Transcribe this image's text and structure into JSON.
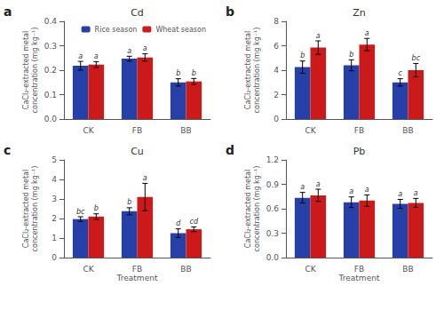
{
  "chart_data": [
    {
      "type": "bar",
      "panel_label": "a",
      "title": "Cd",
      "ylabel": "CaCl₂-extracted metal\nconcentration (mg kg⁻¹)",
      "categories": [
        "CK",
        "FB",
        "BB"
      ],
      "series": [
        {
          "name": "Rice season",
          "color": "#2640a8",
          "values": [
            0.218,
            0.247,
            0.15
          ],
          "errors": [
            0.018,
            0.01,
            0.015
          ],
          "letters": [
            "a",
            "a",
            "b"
          ]
        },
        {
          "name": "Wheat season",
          "color": "#cc1a1a",
          "values": [
            0.223,
            0.252,
            0.154
          ],
          "errors": [
            0.012,
            0.015,
            0.012
          ],
          "letters": [
            "a",
            "a",
            "b"
          ]
        }
      ],
      "ylim": [
        0.0,
        0.4
      ],
      "yticks": [
        {
          "value": 0.0,
          "label": "0.0"
        },
        0.1,
        0.2,
        0.3,
        0.4
      ],
      "grid": false,
      "legend": "upper right"
    },
    {
      "type": "bar",
      "panel_label": "b",
      "title": "Zn",
      "ylabel": "CaCl₂-extracted metal\nconcentration (mg kg⁻¹)",
      "categories": [
        "CK",
        "FB",
        "BB"
      ],
      "series": [
        {
          "name": "Rice season",
          "color": "#2640a8",
          "values": [
            4.25,
            4.4,
            3.0
          ],
          "errors": [
            0.5,
            0.45,
            0.3
          ],
          "letters": [
            "b",
            "b",
            "c"
          ]
        },
        {
          "name": "Wheat season",
          "color": "#cc1a1a",
          "values": [
            5.85,
            6.1,
            4.0
          ],
          "errors": [
            0.55,
            0.5,
            0.55
          ],
          "letters": [
            "a",
            "a",
            "bc"
          ]
        }
      ],
      "ylim": [
        0,
        8
      ],
      "yticks": [
        0,
        2,
        4,
        6,
        8
      ],
      "grid": false
    },
    {
      "type": "bar",
      "panel_label": "c",
      "title": "Cu",
      "ylabel": "CaCl₂-extracted metal\nconcentration (mg kg⁻¹)",
      "xlabel": "Treatment",
      "categories": [
        "CK",
        "FB",
        "BB"
      ],
      "series": [
        {
          "name": "Rice season",
          "color": "#2640a8",
          "values": [
            1.97,
            2.37,
            1.25
          ],
          "errors": [
            0.12,
            0.18,
            0.22
          ],
          "letters": [
            "bc",
            "b",
            "d"
          ]
        },
        {
          "name": "Wheat season",
          "color": "#cc1a1a",
          "values": [
            2.1,
            3.1,
            1.45
          ],
          "errors": [
            0.14,
            0.7,
            0.12
          ],
          "letters": [
            "b",
            "a",
            "cd"
          ]
        }
      ],
      "ylim": [
        0,
        5
      ],
      "yticks": [
        0,
        1,
        2,
        3,
        4,
        5
      ],
      "grid": false
    },
    {
      "type": "bar",
      "panel_label": "d",
      "title": "Pb",
      "ylabel": "CaCl₂-extracted metal\nconcentration (mg kg⁻¹)",
      "xlabel": "Treatment",
      "categories": [
        "CK",
        "FB",
        "BB"
      ],
      "series": [
        {
          "name": "Rice season",
          "color": "#2640a8",
          "values": [
            0.735,
            0.68,
            0.66
          ],
          "errors": [
            0.065,
            0.065,
            0.055
          ],
          "letters": [
            "a",
            "a",
            "a"
          ]
        },
        {
          "name": "Wheat season",
          "color": "#cc1a1a",
          "values": [
            0.765,
            0.7,
            0.672
          ],
          "errors": [
            0.075,
            0.07,
            0.055
          ],
          "letters": [
            "a",
            "a",
            "a"
          ]
        }
      ],
      "ylim": [
        0.0,
        1.2
      ],
      "yticks": [
        {
          "value": 0.0,
          "label": "0.0"
        },
        0.3,
        0.6,
        0.9,
        {
          "value": 1.2,
          "label": "1.2"
        }
      ],
      "grid": false
    }
  ]
}
